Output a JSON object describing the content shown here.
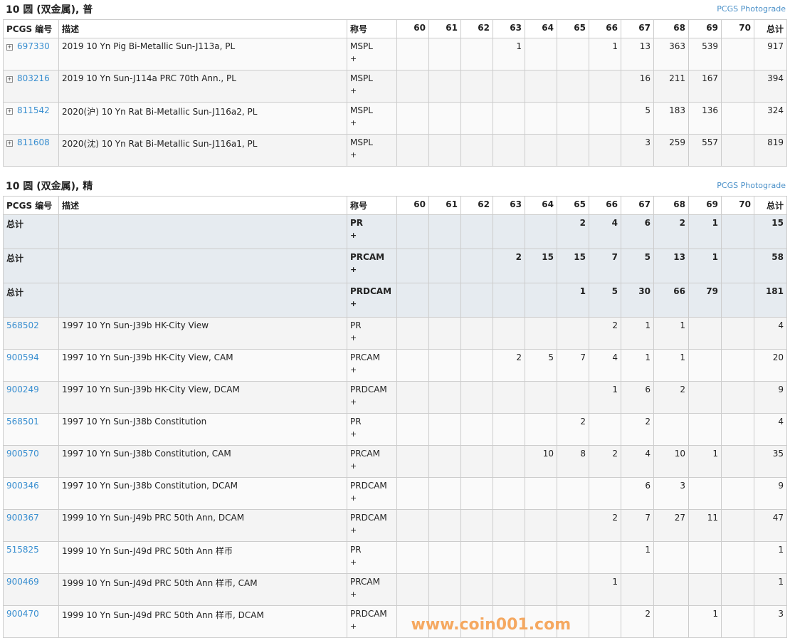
{
  "columns": {
    "id": "PCGS 编号",
    "desc": "描述",
    "designation": "称号",
    "grades": [
      "60",
      "61",
      "62",
      "63",
      "64",
      "65",
      "66",
      "67",
      "68",
      "69",
      "70"
    ],
    "total": "总计"
  },
  "photograde_label": "PCGS Photograde",
  "sections": [
    {
      "title": "10 圆 (双金属), 普",
      "rows": [
        {
          "type": "data",
          "expand": true,
          "id": "697330",
          "desc": "2019 10 Yn Pig Bi-Metallic Sun-J113a, PL",
          "des": "MSPL",
          "plus": "+",
          "g": [
            "",
            "",
            "",
            "1",
            "",
            "",
            "1",
            "13",
            "363",
            "539",
            ""
          ],
          "total": "917"
        },
        {
          "type": "data",
          "expand": true,
          "id": "803216",
          "desc": "2019 10 Yn Sun-J114a PRC 70th Ann., PL",
          "des": "MSPL",
          "plus": "+",
          "g": [
            "",
            "",
            "",
            "",
            "",
            "",
            "",
            "16",
            "211",
            "167",
            ""
          ],
          "total": "394"
        },
        {
          "type": "data",
          "expand": true,
          "id": "811542",
          "desc": "2020(沪) 10 Yn Rat Bi-Metallic Sun-J116a2, PL",
          "des": "MSPL",
          "plus": "+",
          "g": [
            "",
            "",
            "",
            "",
            "",
            "",
            "",
            "5",
            "183",
            "136",
            ""
          ],
          "total": "324"
        },
        {
          "type": "data",
          "expand": true,
          "id": "811608",
          "desc": "2020(沈) 10 Yn Rat Bi-Metallic Sun-J116a1, PL",
          "des": "MSPL",
          "plus": "+",
          "g": [
            "",
            "",
            "",
            "",
            "",
            "",
            "",
            "3",
            "259",
            "557",
            ""
          ],
          "total": "819"
        }
      ]
    },
    {
      "title": "10 圆 (双金属), 精",
      "rows": [
        {
          "type": "total",
          "id": "总计",
          "desc": "",
          "des": "PR",
          "plus": "+",
          "g": [
            "",
            "",
            "",
            "",
            "",
            "2",
            "4",
            "6",
            "2",
            "1",
            ""
          ],
          "total": "15"
        },
        {
          "type": "total",
          "id": "总计",
          "desc": "",
          "des": "PRCAM",
          "plus": "+",
          "g": [
            "",
            "",
            "",
            "2",
            "15",
            "15",
            "7",
            "5",
            "13",
            "1",
            ""
          ],
          "total": "58"
        },
        {
          "type": "total",
          "id": "总计",
          "desc": "",
          "des": "PRDCAM",
          "plus": "+",
          "g": [
            "",
            "",
            "",
            "",
            "",
            "1",
            "5",
            "30",
            "66",
            "79",
            ""
          ],
          "total": "181"
        },
        {
          "type": "data",
          "id": "568502",
          "desc": "1997 10 Yn Sun-J39b HK-City View",
          "des": "PR",
          "plus": "+",
          "g": [
            "",
            "",
            "",
            "",
            "",
            "",
            "2",
            "1",
            "1",
            "",
            ""
          ],
          "total": "4"
        },
        {
          "type": "data",
          "id": "900594",
          "desc": "1997 10 Yn Sun-J39b HK-City View, CAM",
          "des": "PRCAM",
          "plus": "+",
          "g": [
            "",
            "",
            "",
            "2",
            "5",
            "7",
            "4",
            "1",
            "1",
            "",
            ""
          ],
          "total": "20"
        },
        {
          "type": "data",
          "id": "900249",
          "desc": "1997 10 Yn Sun-J39b HK-City View, DCAM",
          "des": "PRDCAM",
          "plus": "+",
          "g": [
            "",
            "",
            "",
            "",
            "",
            "",
            "1",
            "6",
            "2",
            "",
            ""
          ],
          "total": "9"
        },
        {
          "type": "data",
          "id": "568501",
          "desc": "1997 10 Yn Sun-J38b Constitution",
          "des": "PR",
          "plus": "+",
          "g": [
            "",
            "",
            "",
            "",
            "",
            "2",
            "",
            "2",
            "",
            "",
            ""
          ],
          "total": "4"
        },
        {
          "type": "data",
          "id": "900570",
          "desc": "1997 10 Yn Sun-J38b Constitution, CAM",
          "des": "PRCAM",
          "plus": "+",
          "g": [
            "",
            "",
            "",
            "",
            "10",
            "8",
            "2",
            "4",
            "10",
            "1",
            ""
          ],
          "total": "35"
        },
        {
          "type": "data",
          "id": "900346",
          "desc": "1997 10 Yn Sun-J38b Constitution, DCAM",
          "des": "PRDCAM",
          "plus": "+",
          "g": [
            "",
            "",
            "",
            "",
            "",
            "",
            "",
            "6",
            "3",
            "",
            ""
          ],
          "total": "9"
        },
        {
          "type": "data",
          "id": "900367",
          "desc": "1999 10 Yn Sun-J49b PRC 50th Ann, DCAM",
          "des": "PRDCAM",
          "plus": "+",
          "g": [
            "",
            "",
            "",
            "",
            "",
            "",
            "2",
            "7",
            "27",
            "11",
            ""
          ],
          "total": "47"
        },
        {
          "type": "data",
          "id": "515825",
          "desc": "1999 10 Yn Sun-J49d PRC 50th Ann 样币",
          "des": "PR",
          "plus": "+",
          "g": [
            "",
            "",
            "",
            "",
            "",
            "",
            "",
            "1",
            "",
            "",
            ""
          ],
          "total": "1"
        },
        {
          "type": "data",
          "id": "900469",
          "desc": "1999 10 Yn Sun-J49d PRC 50th Ann 样币, CAM",
          "des": "PRCAM",
          "plus": "+",
          "g": [
            "",
            "",
            "",
            "",
            "",
            "",
            "1",
            "",
            "",
            "",
            ""
          ],
          "total": "1"
        },
        {
          "type": "data",
          "id": "900470",
          "desc": "1999 10 Yn Sun-J49d PRC 50th Ann 样币, DCAM",
          "des": "PRDCAM",
          "plus": "+",
          "g": [
            "",
            "",
            "",
            "",
            "",
            "",
            "",
            "2",
            "",
            "1",
            ""
          ],
          "total": "3"
        }
      ]
    }
  ],
  "watermark": "www.coin001.com"
}
